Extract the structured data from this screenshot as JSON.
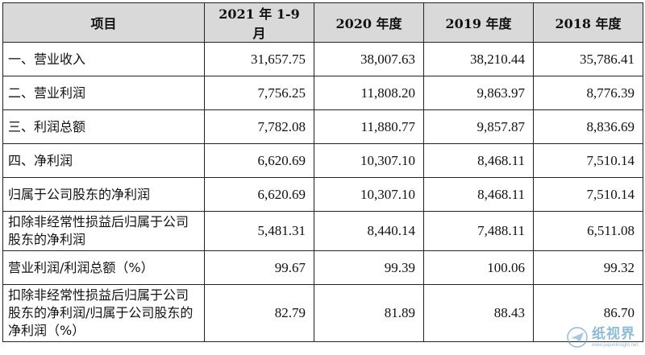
{
  "table": {
    "headers": [
      "项目",
      "2021 年 1-9 月",
      "2020 年度",
      "2019 年度",
      "2018 年度"
    ],
    "rows": [
      {
        "label": "一、营业收入",
        "values": [
          "31,657.75",
          "38,007.63",
          "38,210.44",
          "35,786.41"
        ]
      },
      {
        "label": "二、营业利润",
        "values": [
          "7,756.25",
          "11,808.20",
          "9,863.97",
          "8,776.39"
        ]
      },
      {
        "label": "三、利润总额",
        "values": [
          "7,782.08",
          "11,880.77",
          "9,857.87",
          "8,836.69"
        ]
      },
      {
        "label": "四、净利润",
        "values": [
          "6,620.69",
          "10,307.10",
          "8,468.11",
          "7,510.14"
        ]
      },
      {
        "label": "归属于公司股东的净利润",
        "values": [
          "6,620.69",
          "10,307.10",
          "8,468.11",
          "7,510.14"
        ]
      },
      {
        "label": "扣除非经常性损益后归属于公司股东的净利润",
        "values": [
          "5,481.31",
          "8,440.14",
          "7,488.11",
          "6,511.08"
        ]
      },
      {
        "label": "营业利润/利润总额（%）",
        "values": [
          "99.67",
          "99.39",
          "100.06",
          "99.32"
        ]
      },
      {
        "label": "扣除非经常性损益后归属于公司股东的净利润/归属于公司股东的净利润（%）",
        "values": [
          "82.79",
          "81.89",
          "88.43",
          "86.70"
        ]
      }
    ]
  },
  "watermark": {
    "text": "纸视界",
    "url": "www.paperinsight.net",
    "icon": "paper-plane-logo-icon",
    "color": "#6aa6c8"
  }
}
